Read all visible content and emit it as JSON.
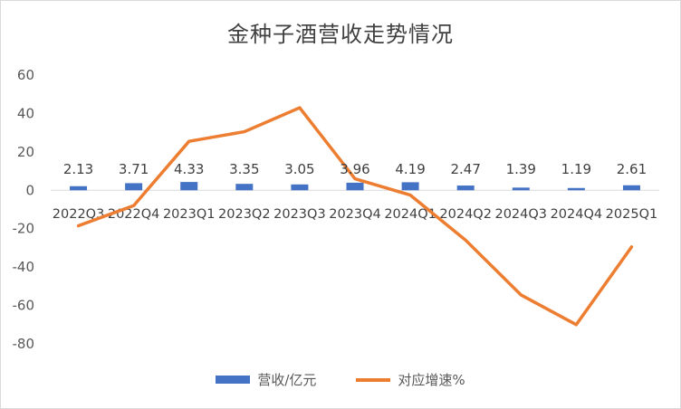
{
  "chart_data": {
    "type": "bar+line",
    "title": "金种子酒营收走势情况",
    "categories": [
      "2022Q3",
      "2022Q4",
      "2023Q1",
      "2023Q2",
      "2023Q3",
      "2023Q4",
      "2024Q1",
      "2024Q2",
      "2024Q3",
      "2024Q4",
      "2025Q1"
    ],
    "series": [
      {
        "name": "营收/亿元",
        "type": "bar",
        "color": "#4472c4",
        "values": [
          2.13,
          3.71,
          4.33,
          3.35,
          3.05,
          3.96,
          4.19,
          2.47,
          1.39,
          1.19,
          2.61
        ],
        "data_labels": [
          "2.13",
          "3.71",
          "4.33",
          "3.35",
          "3.05",
          "3.96",
          "4.19",
          "2.47",
          "1.39",
          "1.19",
          "2.61"
        ]
      },
      {
        "name": "对应增速%",
        "type": "line",
        "color": "#ed7d31",
        "values": [
          -18.5,
          -8,
          25.5,
          30.5,
          43,
          6,
          -2.5,
          -26,
          -54.5,
          -70,
          -29.5
        ]
      }
    ],
    "yticks": [
      "60",
      "40",
      "20",
      "0",
      "-20",
      "-40",
      "-60",
      "-80"
    ],
    "ylim": [
      -80,
      60
    ],
    "grid": false,
    "legend": "bottom"
  }
}
